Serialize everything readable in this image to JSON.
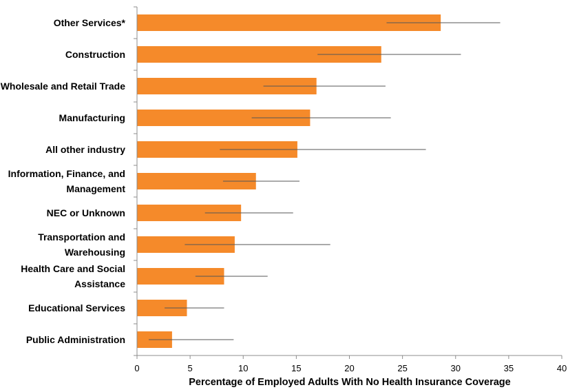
{
  "chart_data": {
    "type": "bar",
    "orientation": "horizontal",
    "categories": [
      "Other Services*",
      "Construction",
      "Wholesale and Retail Trade",
      "Manufacturing",
      "All other industry",
      "Information, Finance, and Management",
      "NEC or Unknown",
      "Transportation and Warehousing",
      "Health Care and Social Assistance",
      "Educational Services",
      "Public Administration"
    ],
    "values": [
      28.6,
      23.0,
      16.9,
      16.3,
      15.1,
      11.2,
      9.8,
      9.2,
      8.2,
      4.7,
      3.3
    ],
    "error_low": [
      23.5,
      17.0,
      11.9,
      10.8,
      7.8,
      8.1,
      6.4,
      4.5,
      5.5,
      2.6,
      1.1
    ],
    "error_high": [
      34.2,
      30.5,
      23.4,
      23.9,
      27.2,
      15.3,
      14.7,
      18.2,
      12.3,
      8.2,
      9.1
    ],
    "xlabel": "Percentage of Employed Adults With No Health Insurance Coverage",
    "ylabel": "",
    "xlim": [
      0,
      40
    ],
    "xticks": [
      0,
      5,
      10,
      15,
      20,
      25,
      30,
      35,
      40
    ],
    "bar_color": "#F58A2A",
    "error_bar_color": "#555555",
    "axis_color": "#8C8C8C",
    "grid": false,
    "legend": "none"
  }
}
